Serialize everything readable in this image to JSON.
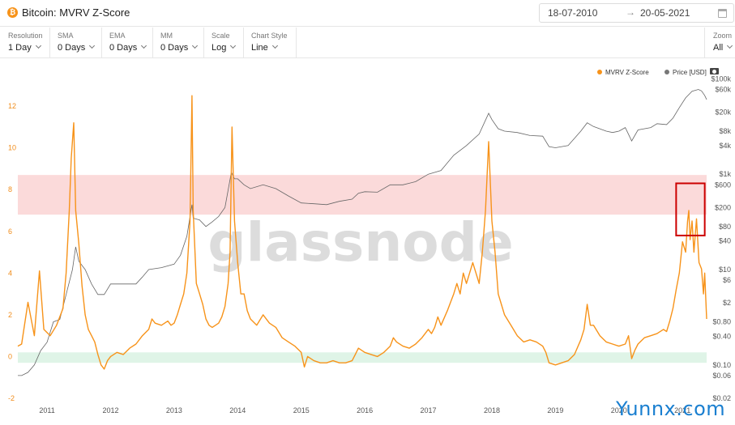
{
  "header": {
    "title": "Bitcoin: MVRV Z-Score",
    "date_from": "18-07-2010",
    "date_to": "20-05-2021"
  },
  "controls": [
    {
      "label": "Resolution",
      "value": "1 Day"
    },
    {
      "label": "SMA",
      "value": "0 Days"
    },
    {
      "label": "EMA",
      "value": "0 Days"
    },
    {
      "label": "MM",
      "value": "0 Days"
    },
    {
      "label": "Scale",
      "value": "Log"
    },
    {
      "label": "Chart Style",
      "value": "Line"
    }
  ],
  "zoom": {
    "label": "Zoom",
    "value": "All"
  },
  "watermark": "glassnode",
  "site_mark": "Yunnx.com",
  "colors": {
    "mvrv": "#f7931a",
    "price": "#666666",
    "top_band": "#fbdada",
    "bottom_band": "#dff4e7",
    "highlight_box": "#cc0000"
  },
  "icons": [
    "bitcoin-icon",
    "arrow-right-icon",
    "calendar-icon",
    "chevron-down-icon",
    "camera-icon"
  ],
  "chart_data": {
    "type": "line",
    "title": "",
    "xlabel": "",
    "ylabel": "",
    "legend_position": "top-right",
    "grid": false,
    "x_ticks": [
      "2011",
      "2012",
      "2013",
      "2014",
      "2015",
      "2016",
      "2017",
      "2018",
      "2019",
      "2020",
      "2021"
    ],
    "x_range": [
      2010.54,
      2021.38
    ],
    "y_left": {
      "ticks": [
        -2,
        0,
        2,
        4,
        6,
        8,
        10,
        12
      ],
      "range": [
        -2,
        13.4
      ]
    },
    "y_right": {
      "scale": "log",
      "ticks": [
        "$100k",
        "$60k",
        "$20k",
        "$8k",
        "$4k",
        "$1k",
        "$600",
        "$200",
        "$80",
        "$40",
        "$10",
        "$6",
        "$2",
        "$0.80",
        "$0.40",
        "$0.10",
        "$0.06",
        "$0.02"
      ],
      "range": [
        0.02,
        110000
      ]
    },
    "bands": [
      {
        "axis": "left",
        "from": 6.8,
        "to": 8.7
      },
      {
        "axis": "left",
        "from": -0.3,
        "to": 0.2
      }
    ],
    "highlight_box": {
      "x_from": 2020.9,
      "x_to": 2021.35,
      "y_from": 5.8,
      "y_to": 8.3
    },
    "series": [
      {
        "name": "MVRV Z-Score",
        "axis": "left",
        "points": [
          [
            2010.54,
            0.5
          ],
          [
            2010.6,
            0.6
          ],
          [
            2010.7,
            2.6
          ],
          [
            2010.8,
            1.0
          ],
          [
            2010.88,
            4.1
          ],
          [
            2010.95,
            1.3
          ],
          [
            2011.05,
            1.0
          ],
          [
            2011.15,
            1.5
          ],
          [
            2011.25,
            2.3
          ],
          [
            2011.3,
            4.0
          ],
          [
            2011.35,
            7.0
          ],
          [
            2011.38,
            9.5
          ],
          [
            2011.42,
            11.2
          ],
          [
            2011.45,
            7.0
          ],
          [
            2011.5,
            5.4
          ],
          [
            2011.55,
            3.4
          ],
          [
            2011.6,
            2.0
          ],
          [
            2011.65,
            1.3
          ],
          [
            2011.7,
            1.0
          ],
          [
            2011.75,
            0.7
          ],
          [
            2011.8,
            0.1
          ],
          [
            2011.85,
            -0.4
          ],
          [
            2011.9,
            -0.6
          ],
          [
            2011.95,
            -0.2
          ],
          [
            2012.0,
            0.0
          ],
          [
            2012.1,
            0.2
          ],
          [
            2012.2,
            0.1
          ],
          [
            2012.3,
            0.4
          ],
          [
            2012.4,
            0.6
          ],
          [
            2012.5,
            1.0
          ],
          [
            2012.6,
            1.3
          ],
          [
            2012.65,
            1.8
          ],
          [
            2012.7,
            1.6
          ],
          [
            2012.8,
            1.5
          ],
          [
            2012.9,
            1.7
          ],
          [
            2012.95,
            1.5
          ],
          [
            2013.0,
            1.6
          ],
          [
            2013.05,
            2.0
          ],
          [
            2013.1,
            2.5
          ],
          [
            2013.15,
            3.0
          ],
          [
            2013.2,
            4.0
          ],
          [
            2013.25,
            6.5
          ],
          [
            2013.28,
            12.5
          ],
          [
            2013.3,
            7.0
          ],
          [
            2013.35,
            3.5
          ],
          [
            2013.4,
            3.0
          ],
          [
            2013.45,
            2.5
          ],
          [
            2013.5,
            1.8
          ],
          [
            2013.55,
            1.5
          ],
          [
            2013.6,
            1.4
          ],
          [
            2013.7,
            1.6
          ],
          [
            2013.75,
            1.9
          ],
          [
            2013.8,
            2.4
          ],
          [
            2013.85,
            3.5
          ],
          [
            2013.88,
            5.0
          ],
          [
            2013.91,
            11.0
          ],
          [
            2013.95,
            6.5
          ],
          [
            2014.0,
            4.5
          ],
          [
            2014.05,
            3.0
          ],
          [
            2014.1,
            3.0
          ],
          [
            2014.15,
            2.2
          ],
          [
            2014.2,
            1.8
          ],
          [
            2014.3,
            1.5
          ],
          [
            2014.4,
            2.0
          ],
          [
            2014.5,
            1.6
          ],
          [
            2014.6,
            1.4
          ],
          [
            2014.7,
            0.9
          ],
          [
            2014.8,
            0.7
          ],
          [
            2014.9,
            0.5
          ],
          [
            2015.0,
            0.2
          ],
          [
            2015.05,
            -0.5
          ],
          [
            2015.1,
            0.0
          ],
          [
            2015.2,
            -0.2
          ],
          [
            2015.3,
            -0.3
          ],
          [
            2015.4,
            -0.3
          ],
          [
            2015.5,
            -0.2
          ],
          [
            2015.6,
            -0.3
          ],
          [
            2015.7,
            -0.3
          ],
          [
            2015.8,
            -0.2
          ],
          [
            2015.85,
            0.1
          ],
          [
            2015.9,
            0.4
          ],
          [
            2016.0,
            0.2
          ],
          [
            2016.1,
            0.1
          ],
          [
            2016.2,
            0.0
          ],
          [
            2016.3,
            0.2
          ],
          [
            2016.4,
            0.5
          ],
          [
            2016.45,
            0.9
          ],
          [
            2016.5,
            0.7
          ],
          [
            2016.6,
            0.5
          ],
          [
            2016.7,
            0.4
          ],
          [
            2016.8,
            0.6
          ],
          [
            2016.9,
            0.9
          ],
          [
            2017.0,
            1.3
          ],
          [
            2017.05,
            1.1
          ],
          [
            2017.1,
            1.4
          ],
          [
            2017.15,
            1.9
          ],
          [
            2017.2,
            1.5
          ],
          [
            2017.3,
            2.2
          ],
          [
            2017.35,
            2.6
          ],
          [
            2017.4,
            3.0
          ],
          [
            2017.45,
            3.5
          ],
          [
            2017.5,
            3.0
          ],
          [
            2017.55,
            4.0
          ],
          [
            2017.6,
            3.5
          ],
          [
            2017.7,
            4.5
          ],
          [
            2017.8,
            3.5
          ],
          [
            2017.85,
            5.0
          ],
          [
            2017.9,
            7.0
          ],
          [
            2017.95,
            10.3
          ],
          [
            2018.0,
            6.5
          ],
          [
            2018.05,
            5.0
          ],
          [
            2018.1,
            3.0
          ],
          [
            2018.15,
            2.5
          ],
          [
            2018.2,
            2.0
          ],
          [
            2018.3,
            1.5
          ],
          [
            2018.4,
            1.0
          ],
          [
            2018.5,
            0.7
          ],
          [
            2018.6,
            0.8
          ],
          [
            2018.7,
            0.7
          ],
          [
            2018.8,
            0.5
          ],
          [
            2018.85,
            0.2
          ],
          [
            2018.9,
            -0.3
          ],
          [
            2019.0,
            -0.4
          ],
          [
            2019.1,
            -0.3
          ],
          [
            2019.2,
            -0.2
          ],
          [
            2019.3,
            0.1
          ],
          [
            2019.4,
            0.8
          ],
          [
            2019.45,
            1.3
          ],
          [
            2019.5,
            2.5
          ],
          [
            2019.55,
            1.5
          ],
          [
            2019.6,
            1.5
          ],
          [
            2019.7,
            1.0
          ],
          [
            2019.8,
            0.7
          ],
          [
            2019.9,
            0.6
          ],
          [
            2020.0,
            0.5
          ],
          [
            2020.1,
            0.6
          ],
          [
            2020.15,
            1.0
          ],
          [
            2020.2,
            -0.1
          ],
          [
            2020.25,
            0.3
          ],
          [
            2020.3,
            0.6
          ],
          [
            2020.4,
            0.9
          ],
          [
            2020.5,
            1.0
          ],
          [
            2020.6,
            1.1
          ],
          [
            2020.7,
            1.3
          ],
          [
            2020.75,
            1.2
          ],
          [
            2020.8,
            1.7
          ],
          [
            2020.85,
            2.3
          ],
          [
            2020.9,
            3.2
          ],
          [
            2020.95,
            4.0
          ],
          [
            2021.0,
            5.5
          ],
          [
            2021.05,
            5.0
          ],
          [
            2021.08,
            6.5
          ],
          [
            2021.1,
            7.0
          ],
          [
            2021.12,
            5.6
          ],
          [
            2021.15,
            6.5
          ],
          [
            2021.18,
            5.0
          ],
          [
            2021.22,
            6.6
          ],
          [
            2021.26,
            4.5
          ],
          [
            2021.3,
            4.2
          ],
          [
            2021.33,
            3.0
          ],
          [
            2021.35,
            4.0
          ],
          [
            2021.38,
            1.8
          ]
        ]
      },
      {
        "name": "Price [USD]",
        "axis": "right",
        "points": [
          [
            2010.54,
            0.06
          ],
          [
            2010.6,
            0.06
          ],
          [
            2010.7,
            0.07
          ],
          [
            2010.8,
            0.1
          ],
          [
            2010.9,
            0.2
          ],
          [
            2011.0,
            0.3
          ],
          [
            2011.1,
            0.8
          ],
          [
            2011.2,
            0.9
          ],
          [
            2011.3,
            3
          ],
          [
            2011.4,
            10
          ],
          [
            2011.45,
            30
          ],
          [
            2011.5,
            15
          ],
          [
            2011.6,
            10
          ],
          [
            2011.7,
            5
          ],
          [
            2011.8,
            3
          ],
          [
            2011.9,
            3
          ],
          [
            2012.0,
            5
          ],
          [
            2012.2,
            5
          ],
          [
            2012.4,
            5
          ],
          [
            2012.5,
            7
          ],
          [
            2012.6,
            10
          ],
          [
            2012.8,
            11
          ],
          [
            2013.0,
            13
          ],
          [
            2013.1,
            20
          ],
          [
            2013.2,
            50
          ],
          [
            2013.28,
            230
          ],
          [
            2013.3,
            120
          ],
          [
            2013.4,
            110
          ],
          [
            2013.5,
            80
          ],
          [
            2013.6,
            100
          ],
          [
            2013.7,
            130
          ],
          [
            2013.8,
            200
          ],
          [
            2013.9,
            1100
          ],
          [
            2013.95,
            800
          ],
          [
            2014.0,
            800
          ],
          [
            2014.1,
            600
          ],
          [
            2014.2,
            500
          ],
          [
            2014.4,
            600
          ],
          [
            2014.6,
            500
          ],
          [
            2014.8,
            350
          ],
          [
            2015.0,
            250
          ],
          [
            2015.2,
            240
          ],
          [
            2015.4,
            230
          ],
          [
            2015.6,
            270
          ],
          [
            2015.8,
            300
          ],
          [
            2015.9,
            400
          ],
          [
            2016.0,
            430
          ],
          [
            2016.2,
            420
          ],
          [
            2016.4,
            600
          ],
          [
            2016.6,
            600
          ],
          [
            2016.8,
            700
          ],
          [
            2017.0,
            1000
          ],
          [
            2017.2,
            1200
          ],
          [
            2017.4,
            2500
          ],
          [
            2017.6,
            4000
          ],
          [
            2017.8,
            7000
          ],
          [
            2017.95,
            19000
          ],
          [
            2018.0,
            14000
          ],
          [
            2018.1,
            9000
          ],
          [
            2018.2,
            8000
          ],
          [
            2018.4,
            7500
          ],
          [
            2018.6,
            6500
          ],
          [
            2018.8,
            6300
          ],
          [
            2018.9,
            3800
          ],
          [
            2019.0,
            3600
          ],
          [
            2019.2,
            4000
          ],
          [
            2019.4,
            8000
          ],
          [
            2019.5,
            12000
          ],
          [
            2019.6,
            10000
          ],
          [
            2019.8,
            8000
          ],
          [
            2019.9,
            7500
          ],
          [
            2020.0,
            8000
          ],
          [
            2020.1,
            9500
          ],
          [
            2020.2,
            5000
          ],
          [
            2020.3,
            8500
          ],
          [
            2020.5,
            9500
          ],
          [
            2020.6,
            11500
          ],
          [
            2020.75,
            11000
          ],
          [
            2020.85,
            15000
          ],
          [
            2020.95,
            25000
          ],
          [
            2021.05,
            40000
          ],
          [
            2021.15,
            55000
          ],
          [
            2021.25,
            60000
          ],
          [
            2021.3,
            56000
          ],
          [
            2021.35,
            45000
          ],
          [
            2021.38,
            37000
          ]
        ]
      }
    ]
  }
}
